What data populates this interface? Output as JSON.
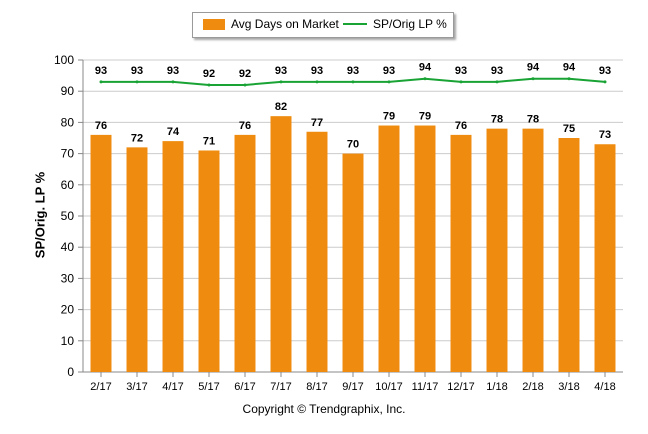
{
  "chart_data": {
    "type": "bar",
    "categories": [
      "2/17",
      "3/17",
      "4/17",
      "5/17",
      "6/17",
      "7/17",
      "8/17",
      "9/17",
      "10/17",
      "11/17",
      "12/17",
      "1/18",
      "2/18",
      "3/18",
      "4/18"
    ],
    "series": [
      {
        "name": "Avg Days on Market",
        "kind": "bar",
        "color": "#EF8C10",
        "values": [
          76,
          72,
          74,
          71,
          76,
          82,
          77,
          70,
          79,
          79,
          76,
          78,
          78,
          75,
          73
        ]
      },
      {
        "name": "SP/Orig LP %",
        "kind": "line",
        "color": "#18A334",
        "values": [
          93,
          93,
          93,
          92,
          92,
          93,
          93,
          93,
          93,
          94,
          93,
          93,
          94,
          94,
          93
        ]
      }
    ],
    "ylabel": "SP/Orig. LP %",
    "ylim": [
      0,
      100
    ],
    "yticks": [
      0,
      10,
      20,
      30,
      40,
      50,
      60,
      70,
      80,
      90,
      100
    ],
    "grid": true,
    "legend_position": "top-center"
  },
  "footer": {
    "copyright": "Copyright © Trendgraphix, Inc."
  },
  "colors": {
    "grid": "#cccccc",
    "axis": "#888888"
  }
}
